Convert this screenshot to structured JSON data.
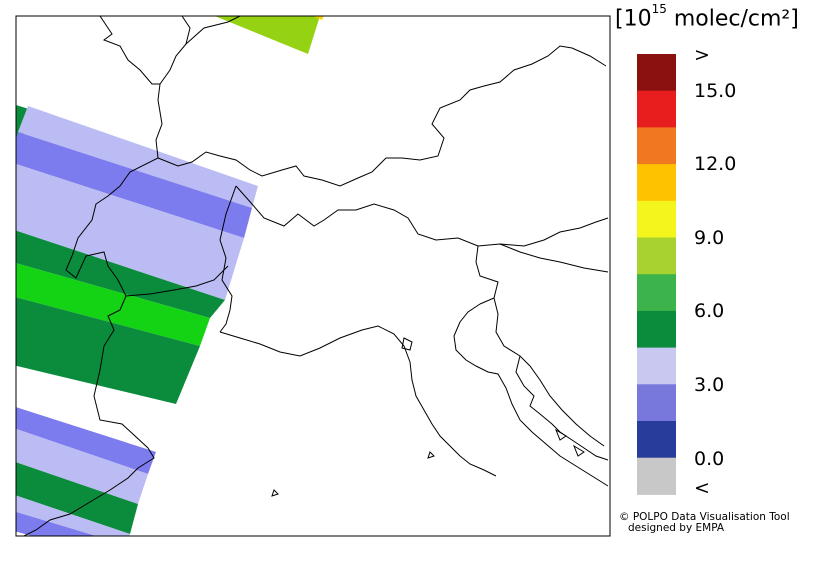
{
  "legend": {
    "title_base": "[10",
    "title_exp": "15",
    "title_unit": " molec/cm²]",
    "labels": [
      ">",
      "15.0",
      "12.0",
      "9.0",
      "6.0",
      "3.0",
      "0.0",
      "<"
    ],
    "colors": [
      "#8b1010",
      "#e81e1e",
      "#f07820",
      "#ffc200",
      "#f5f51e",
      "#a8d230",
      "#3cb44b",
      "#0a8c3c",
      "#c8c8f0",
      "#7878dc",
      "#283c9b",
      "#c8c8c8"
    ]
  },
  "colors": {
    "light_lavender": "#bcbcf4",
    "mid_blue": "#7c7cee",
    "dark_green": "#0a8c3c",
    "bright_green": "#14d214",
    "yellow_green": "#96d214",
    "yellow": "#ffd700",
    "coastline": "#000000"
  },
  "credit": {
    "line1": "© POLPO Data Visualisation Tool",
    "line2": "designed by EMPA"
  }
}
